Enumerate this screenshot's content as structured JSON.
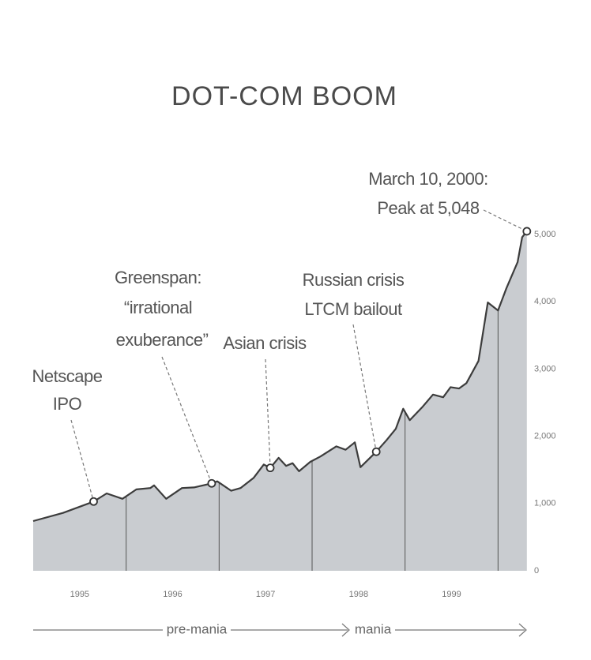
{
  "chart_data": {
    "type": "area",
    "title": "DOT-COM BOOM",
    "x": [
      1995.0,
      1995.32,
      1995.65,
      1995.79,
      1995.96,
      1996.11,
      1996.26,
      1996.3,
      1996.43,
      1996.6,
      1996.73,
      1996.92,
      1996.98,
      1997.13,
      1997.23,
      1997.37,
      1997.48,
      1997.55,
      1997.64,
      1997.72,
      1997.79,
      1997.86,
      1997.98,
      1998.09,
      1998.26,
      1998.36,
      1998.46,
      1998.52,
      1998.69,
      1998.8,
      1998.9,
      1998.98,
      1999.05,
      1999.19,
      1999.3,
      1999.41,
      1999.49,
      1999.58,
      1999.66,
      1999.79,
      1999.89,
      2000.0,
      2000.09,
      2000.21,
      2000.26,
      2000.31
    ],
    "values": [
      740,
      860,
      1030,
      1150,
      1070,
      1210,
      1230,
      1270,
      1070,
      1230,
      1240,
      1300,
      1330,
      1190,
      1230,
      1380,
      1580,
      1530,
      1680,
      1560,
      1600,
      1480,
      1620,
      1700,
      1850,
      1800,
      1910,
      1540,
      1770,
      1940,
      2110,
      2410,
      2240,
      2440,
      2620,
      2580,
      2730,
      2710,
      2790,
      3120,
      3990,
      3870,
      4200,
      4590,
      4960,
      5048
    ],
    "color": "#c9ccd0",
    "line_color": "#3c3c3c",
    "xlim": [
      1995,
      2000.32
    ],
    "xticks": [
      1995,
      1996,
      1997,
      1998,
      1999,
      {
        "value": 2000,
        "label": null
      }
    ],
    "ylim": [
      0,
      5200
    ],
    "yticks": [
      0,
      {
        "value": 1000,
        "label": "1,000"
      },
      {
        "value": 2000,
        "label": "2,000"
      },
      {
        "value": 3000,
        "label": "3,000"
      },
      {
        "value": 4000,
        "label": "4,000"
      },
      {
        "value": 5000,
        "label": "5,000"
      }
    ],
    "annotations": [
      {
        "lines": [
          "Netscape",
          "IPO"
        ],
        "x": 1995.65
      },
      {
        "lines": [
          "Greenspan:",
          "“irrational",
          "exuberance”"
        ],
        "x": 1996.92
      },
      {
        "lines": [
          "Asian crisis"
        ],
        "x": 1997.55
      },
      {
        "lines": [
          "Russian crisis",
          "LTCM bailout"
        ],
        "x": 1998.69
      },
      {
        "lines": [
          "March 10, 2000:",
          "Peak at 5,048"
        ],
        "x": 2000.31
      }
    ],
    "phases": [
      "pre-mania",
      "mania"
    ]
  }
}
